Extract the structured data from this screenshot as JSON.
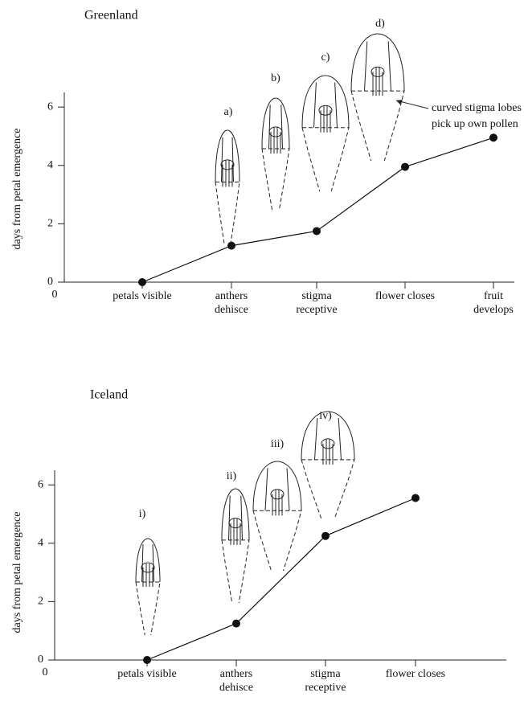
{
  "chart_data": [
    {
      "type": "line",
      "title": "Greenland",
      "ylabel": "days from petal emergence",
      "origin_label": "0",
      "categories": [
        "petals visible",
        "anthers dehisce",
        "stigma receptive",
        "flower closes",
        "fruit develops"
      ],
      "values": [
        0,
        1.25,
        1.75,
        3.95,
        4.95
      ],
      "color": "#111111",
      "ylim": [
        0,
        6.5
      ],
      "yticks": [
        0,
        2,
        4,
        6
      ],
      "annotations": [
        "a)",
        "b)",
        "c)",
        "d)",
        "curved stigma lobes pick up own pollen"
      ]
    },
    {
      "type": "line",
      "title": "Iceland",
      "ylabel": "days from petal emergence",
      "origin_label": "0",
      "categories": [
        "petals visible",
        "anthers dehisce",
        "stigma receptive",
        "flower closes"
      ],
      "values": [
        0,
        1.25,
        4.25,
        5.55
      ],
      "color": "#111111",
      "ylim": [
        0,
        6.5
      ],
      "yticks": [
        0,
        2,
        4,
        6
      ],
      "annotations": [
        "i)",
        "ii)",
        "iii)",
        "iv)"
      ]
    }
  ]
}
